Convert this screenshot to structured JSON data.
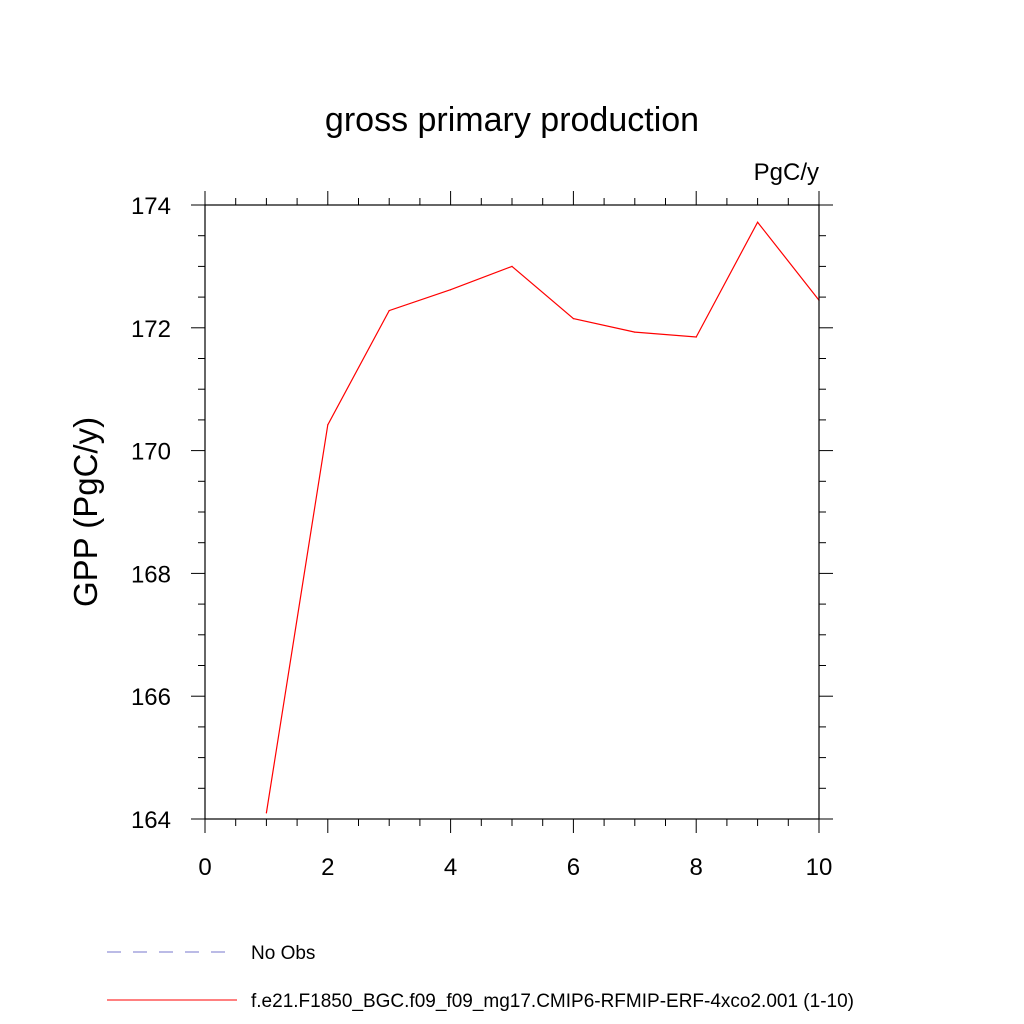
{
  "chart_data": {
    "type": "line",
    "title": "gross primary production",
    "units_label": "PgC/y",
    "xlabel": "",
    "ylabel": "GPP  (PgC/y)",
    "xlim": [
      0,
      10
    ],
    "ylim": [
      164,
      174
    ],
    "x_ticks": [
      "0",
      "2",
      "4",
      "6",
      "8",
      "10"
    ],
    "y_ticks": [
      "164",
      "166",
      "168",
      "170",
      "172",
      "174"
    ],
    "grid": false,
    "legend_position": "bottom-left",
    "series": [
      {
        "name": "f.e21.F1850_BGC.f09_f09_mg17.CMIP6-RFMIP-ERF-4xco2.001 (1-10)",
        "color": "#ff0000",
        "style": "solid",
        "x": [
          1,
          2,
          3,
          4,
          5,
          6,
          7,
          8,
          9,
          10
        ],
        "y": [
          164.1,
          170.42,
          172.28,
          172.62,
          173.0,
          172.15,
          171.93,
          171.85,
          173.72,
          172.45
        ]
      }
    ],
    "legend": [
      {
        "label": "No Obs",
        "color": "#7777cc",
        "style": "dashed"
      },
      {
        "label": "f.e21.F1850_BGC.f09_f09_mg17.CMIP6-RFMIP-ERF-4xco2.001 (1-10)",
        "color": "#ff0000",
        "style": "solid"
      }
    ]
  }
}
